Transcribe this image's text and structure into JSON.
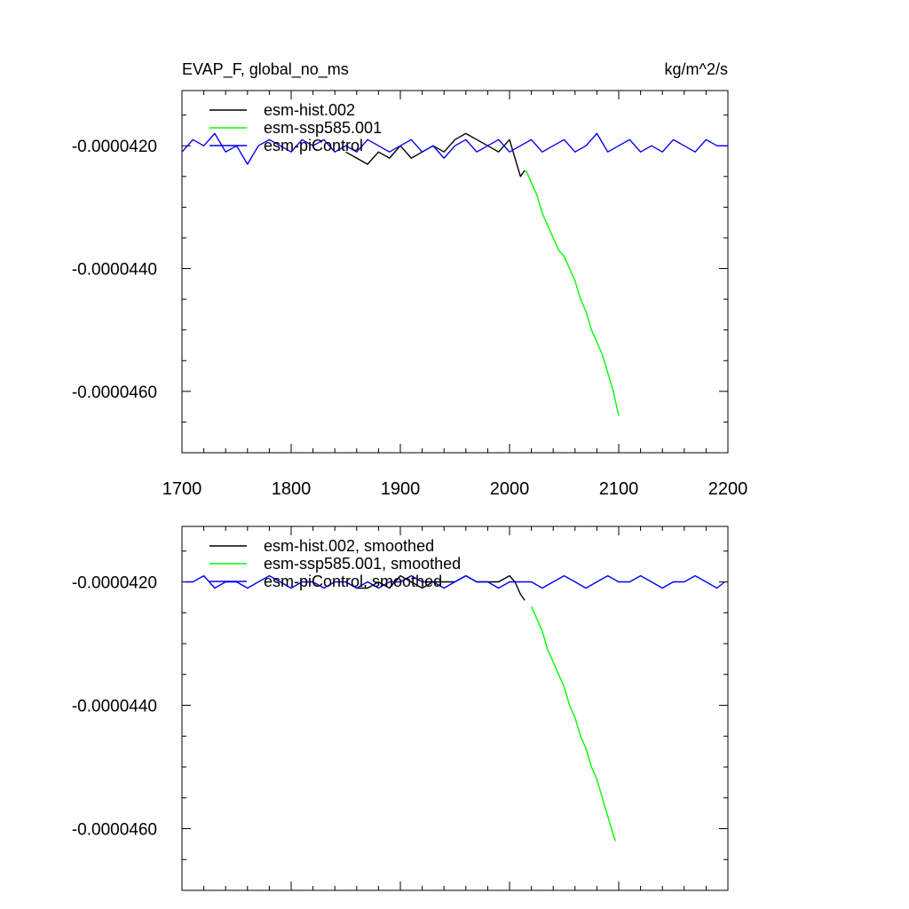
{
  "chart_data": [
    {
      "type": "line",
      "title_left": "EVAP_F, global_no_ms",
      "title_right": "kg/m^2/s",
      "xlim": [
        1700,
        2200
      ],
      "ylim": [
        -4.7e-05,
        -4.11e-05
      ],
      "xticks": [
        1700,
        1800,
        1900,
        2000,
        2100,
        2200
      ],
      "xtick_labels": [
        "1700",
        "1800",
        "1900",
        "2000",
        "2100",
        "2200"
      ],
      "yticks": [
        -4.2e-05,
        -4.4e-05,
        -4.6e-05
      ],
      "ytick_labels": [
        "-0.0000420",
        "-0.0000440",
        "-0.0000460"
      ],
      "legend_position": "top-left",
      "series": [
        {
          "name": "esm-hist.002",
          "color": "#000000",
          "x": [
            1850,
            1860,
            1870,
            1880,
            1890,
            1900,
            1910,
            1920,
            1930,
            1940,
            1950,
            1960,
            1970,
            1980,
            1990,
            2000,
            2005,
            2010,
            2014
          ],
          "y": [
            -4.21e-05,
            -4.22e-05,
            -4.23e-05,
            -4.21e-05,
            -4.22e-05,
            -4.2e-05,
            -4.22e-05,
            -4.21e-05,
            -4.2e-05,
            -4.21e-05,
            -4.19e-05,
            -4.18e-05,
            -4.19e-05,
            -4.2e-05,
            -4.21e-05,
            -4.19e-05,
            -4.22e-05,
            -4.25e-05,
            -4.24e-05
          ]
        },
        {
          "name": "esm-ssp585.001",
          "color": "#00ff00",
          "x": [
            2015,
            2020,
            2025,
            2030,
            2035,
            2040,
            2045,
            2050,
            2055,
            2060,
            2065,
            2070,
            2075,
            2080,
            2085,
            2090,
            2095,
            2100
          ],
          "y": [
            -4.24e-05,
            -4.26e-05,
            -4.28e-05,
            -4.31e-05,
            -4.33e-05,
            -4.35e-05,
            -4.37e-05,
            -4.38e-05,
            -4.4e-05,
            -4.42e-05,
            -4.45e-05,
            -4.47e-05,
            -4.5e-05,
            -4.52e-05,
            -4.54e-05,
            -4.57e-05,
            -4.6e-05,
            -4.64e-05
          ]
        },
        {
          "name": "esm-piControl",
          "color": "#0000ff",
          "x": [
            1700,
            1710,
            1720,
            1730,
            1740,
            1750,
            1760,
            1770,
            1780,
            1790,
            1800,
            1810,
            1820,
            1830,
            1840,
            1850,
            1860,
            1870,
            1880,
            1890,
            1900,
            1910,
            1920,
            1930,
            1940,
            1950,
            1960,
            1970,
            1980,
            1990,
            2000,
            2010,
            2020,
            2030,
            2040,
            2050,
            2060,
            2070,
            2080,
            2090,
            2100,
            2110,
            2120,
            2130,
            2140,
            2150,
            2160,
            2170,
            2180,
            2190,
            2200
          ],
          "y": [
            -4.21e-05,
            -4.19e-05,
            -4.2e-05,
            -4.18e-05,
            -4.21e-05,
            -4.2e-05,
            -4.23e-05,
            -4.2e-05,
            -4.19e-05,
            -4.2e-05,
            -4.21e-05,
            -4.19e-05,
            -4.2e-05,
            -4.19e-05,
            -4.21e-05,
            -4.2e-05,
            -4.21e-05,
            -4.19e-05,
            -4.2e-05,
            -4.21e-05,
            -4.2e-05,
            -4.19e-05,
            -4.21e-05,
            -4.2e-05,
            -4.22e-05,
            -4.2e-05,
            -4.19e-05,
            -4.21e-05,
            -4.2e-05,
            -4.19e-05,
            -4.21e-05,
            -4.2e-05,
            -4.19e-05,
            -4.21e-05,
            -4.2e-05,
            -4.19e-05,
            -4.21e-05,
            -4.2e-05,
            -4.18e-05,
            -4.21e-05,
            -4.2e-05,
            -4.19e-05,
            -4.21e-05,
            -4.2e-05,
            -4.21e-05,
            -4.19e-05,
            -4.2e-05,
            -4.21e-05,
            -4.19e-05,
            -4.2e-05,
            -4.2e-05
          ]
        }
      ]
    },
    {
      "type": "line",
      "xlim": [
        1700,
        2200
      ],
      "ylim": [
        -4.7e-05,
        -4.11e-05
      ],
      "yticks": [
        -4.2e-05,
        -4.4e-05,
        -4.6e-05
      ],
      "ytick_labels": [
        "-0.0000420",
        "-0.0000440",
        "-0.0000460"
      ],
      "legend_position": "top-left",
      "series": [
        {
          "name": "esm-hist.002, smoothed",
          "color": "#000000",
          "x": [
            1850,
            1860,
            1870,
            1880,
            1890,
            1900,
            1910,
            1920,
            1930,
            1940,
            1950,
            1960,
            1970,
            1980,
            1990,
            2000,
            2005,
            2010,
            2014
          ],
          "y": [
            -4.2e-05,
            -4.21e-05,
            -4.21e-05,
            -4.2e-05,
            -4.21e-05,
            -4.19e-05,
            -4.2e-05,
            -4.21e-05,
            -4.2e-05,
            -4.2e-05,
            -4.2e-05,
            -4.19e-05,
            -4.2e-05,
            -4.2e-05,
            -4.2e-05,
            -4.19e-05,
            -4.2e-05,
            -4.22e-05,
            -4.23e-05
          ]
        },
        {
          "name": "esm-ssp585.001, smoothed",
          "color": "#00ff00",
          "x": [
            2020,
            2025,
            2030,
            2035,
            2040,
            2045,
            2050,
            2055,
            2060,
            2065,
            2070,
            2075,
            2080,
            2085,
            2090,
            2095,
            2097
          ],
          "y": [
            -4.24e-05,
            -4.26e-05,
            -4.28e-05,
            -4.31e-05,
            -4.33e-05,
            -4.35e-05,
            -4.37e-05,
            -4.4e-05,
            -4.42e-05,
            -4.45e-05,
            -4.47e-05,
            -4.5e-05,
            -4.52e-05,
            -4.55e-05,
            -4.58e-05,
            -4.61e-05,
            -4.62e-05
          ]
        },
        {
          "name": "esm-piControl, smoothed",
          "color": "#0000ff",
          "x": [
            1703,
            1710,
            1720,
            1730,
            1740,
            1750,
            1760,
            1770,
            1780,
            1790,
            1800,
            1810,
            1820,
            1830,
            1840,
            1850,
            1860,
            1870,
            1880,
            1890,
            1900,
            1910,
            1920,
            1930,
            1940,
            1950,
            1960,
            1970,
            1980,
            1990,
            2000,
            2010,
            2020,
            2030,
            2040,
            2050,
            2060,
            2070,
            2080,
            2090,
            2100,
            2110,
            2120,
            2130,
            2140,
            2150,
            2160,
            2170,
            2180,
            2190,
            2197
          ],
          "y": [
            -4.2e-05,
            -4.2e-05,
            -4.19e-05,
            -4.21e-05,
            -4.2e-05,
            -4.2e-05,
            -4.21e-05,
            -4.2e-05,
            -4.19e-05,
            -4.2e-05,
            -4.21e-05,
            -4.2e-05,
            -4.2e-05,
            -4.21e-05,
            -4.2e-05,
            -4.2e-05,
            -4.21e-05,
            -4.2e-05,
            -4.21e-05,
            -4.2e-05,
            -4.2e-05,
            -4.19e-05,
            -4.2e-05,
            -4.2e-05,
            -4.21e-05,
            -4.2e-05,
            -4.19e-05,
            -4.2e-05,
            -4.2e-05,
            -4.21e-05,
            -4.2e-05,
            -4.2e-05,
            -4.2e-05,
            -4.21e-05,
            -4.2e-05,
            -4.19e-05,
            -4.2e-05,
            -4.21e-05,
            -4.2e-05,
            -4.19e-05,
            -4.2e-05,
            -4.2e-05,
            -4.19e-05,
            -4.2e-05,
            -4.21e-05,
            -4.2e-05,
            -4.2e-05,
            -4.19e-05,
            -4.2e-05,
            -4.21e-05,
            -4.2e-05
          ]
        }
      ]
    }
  ]
}
